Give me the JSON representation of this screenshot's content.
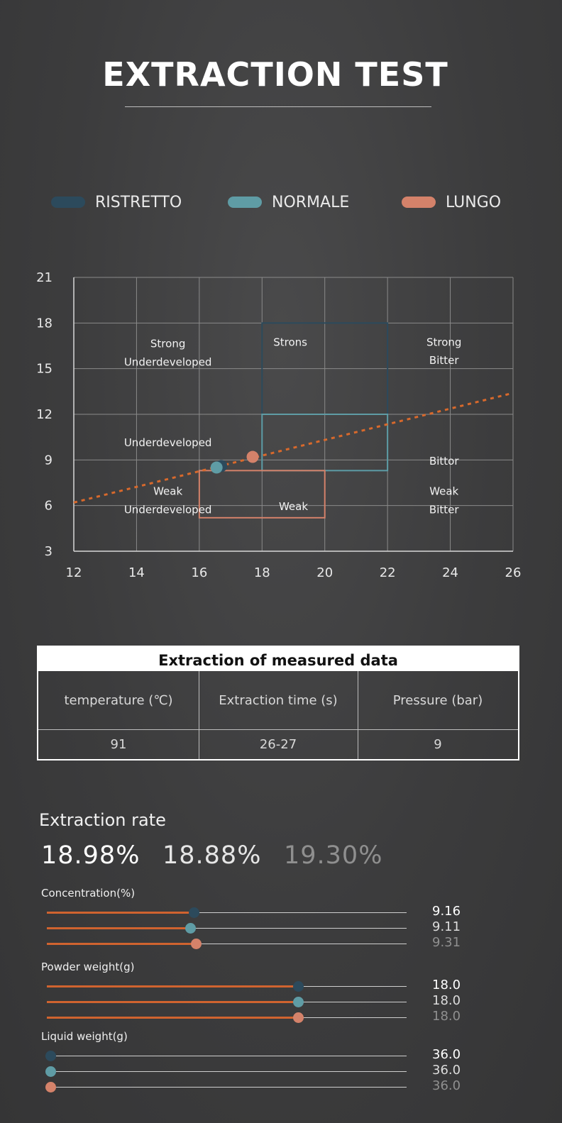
{
  "header": {
    "title": "EXTRACTION TEST"
  },
  "colors": {
    "ristretto": "#2c4a5c",
    "normale": "#5f9ca5",
    "lungo": "#d4826a",
    "trend": "#d8692c",
    "fill": "#d0632f"
  },
  "legend": [
    {
      "label": "RISTRETTO",
      "color": "#2c4a5c"
    },
    {
      "label": "NORMALE",
      "color": "#5f9ca5"
    },
    {
      "label": "LUNGO",
      "color": "#d4826a"
    }
  ],
  "chart_data": {
    "type": "scatter",
    "title": "",
    "xlabel": "",
    "ylabel": "",
    "xlim": [
      12,
      26
    ],
    "ylim": [
      3,
      21
    ],
    "x_ticks": [
      12,
      14,
      16,
      18,
      20,
      22,
      24,
      26
    ],
    "y_ticks": [
      3,
      6,
      9,
      12,
      15,
      18,
      21
    ],
    "grid": true,
    "series": [
      {
        "name": "RISTRETTO",
        "color": "#2c4a5c",
        "points": [
          [
            16.7,
            8.6
          ]
        ]
      },
      {
        "name": "NORMALE",
        "color": "#5f9ca5",
        "points": [
          [
            16.55,
            8.5
          ]
        ]
      },
      {
        "name": "LUNGO",
        "color": "#d4826a",
        "points": [
          [
            17.7,
            9.2
          ]
        ]
      }
    ],
    "trend_line": {
      "style": "dotted",
      "color": "#d8692c",
      "from": [
        12,
        6.2
      ],
      "to": [
        26,
        13.4
      ]
    },
    "regions": [
      {
        "name": "ristretto-zone",
        "color": "#2c4a5c",
        "x": [
          18,
          22
        ],
        "y": [
          8.3,
          18
        ]
      },
      {
        "name": "normale-zone",
        "color": "#5f9ca5",
        "x": [
          18,
          22
        ],
        "y": [
          8.3,
          12
        ]
      },
      {
        "name": "lungo-zone",
        "color": "#d4826a",
        "x": [
          16,
          20
        ],
        "y": [
          5.2,
          8.3
        ]
      }
    ],
    "annotations": [
      {
        "text": "Strong",
        "x": 15.0,
        "y": 16.4
      },
      {
        "text": "Underdeveloped",
        "x": 15.0,
        "y": 15.2
      },
      {
        "text": "Strons",
        "x": 18.9,
        "y": 16.5
      },
      {
        "text": "Strong",
        "x": 23.8,
        "y": 16.5
      },
      {
        "text": "Bitter",
        "x": 23.8,
        "y": 15.3
      },
      {
        "text": "Underdeveloped",
        "x": 15.0,
        "y": 9.9
      },
      {
        "text": "Bittor",
        "x": 23.8,
        "y": 8.7
      },
      {
        "text": "Weak",
        "x": 15.0,
        "y": 6.7
      },
      {
        "text": "Underdeveloped",
        "x": 15.0,
        "y": 5.5
      },
      {
        "text": "Weak",
        "x": 19.0,
        "y": 5.7
      },
      {
        "text": "Weak",
        "x": 23.8,
        "y": 6.7
      },
      {
        "text": "Bitter",
        "x": 23.8,
        "y": 5.5
      }
    ]
  },
  "table": {
    "title": "Extraction of measured data",
    "headers": [
      "temperature (℃)",
      "Extraction time (s)",
      "Pressure (bar)"
    ],
    "values": [
      "91",
      "26-27",
      "9"
    ]
  },
  "rates": {
    "label": "Extraction rate",
    "values": [
      {
        "text": "18.98%",
        "color": "#ffffff"
      },
      {
        "text": "18.88%",
        "color": "#e6e6e6"
      },
      {
        "text": "19.30%",
        "color": "#8f8f8f"
      }
    ]
  },
  "groups": [
    {
      "label": "Concentration(%)",
      "sliders": [
        {
          "value_text": "9.16",
          "fraction": 0.41,
          "knob": "#2c4a5c",
          "text_color": "#ffffff"
        },
        {
          "value_text": "9.11",
          "fraction": 0.4,
          "knob": "#5f9ca5",
          "text_color": "#dcdcdc"
        },
        {
          "value_text": "9.31",
          "fraction": 0.415,
          "knob": "#d4826a",
          "text_color": "#8f8f8f"
        }
      ]
    },
    {
      "label": "Powder weight(g)",
      "sliders": [
        {
          "value_text": "18.0",
          "fraction": 0.7,
          "knob": "#2c4a5c",
          "text_color": "#ffffff"
        },
        {
          "value_text": "18.0",
          "fraction": 0.7,
          "knob": "#5f9ca5",
          "text_color": "#dcdcdc"
        },
        {
          "value_text": "18.0",
          "fraction": 0.7,
          "knob": "#d4826a",
          "text_color": "#8f8f8f"
        }
      ]
    },
    {
      "label": "Liquid weight(g)",
      "sliders": [
        {
          "value_text": "36.0",
          "fraction": 0.01,
          "knob": "#2c4a5c",
          "text_color": "#ffffff"
        },
        {
          "value_text": "36.0",
          "fraction": 0.01,
          "knob": "#5f9ca5",
          "text_color": "#dcdcdc"
        },
        {
          "value_text": "36.0",
          "fraction": 0.01,
          "knob": "#d4826a",
          "text_color": "#8f8f8f"
        }
      ]
    }
  ]
}
